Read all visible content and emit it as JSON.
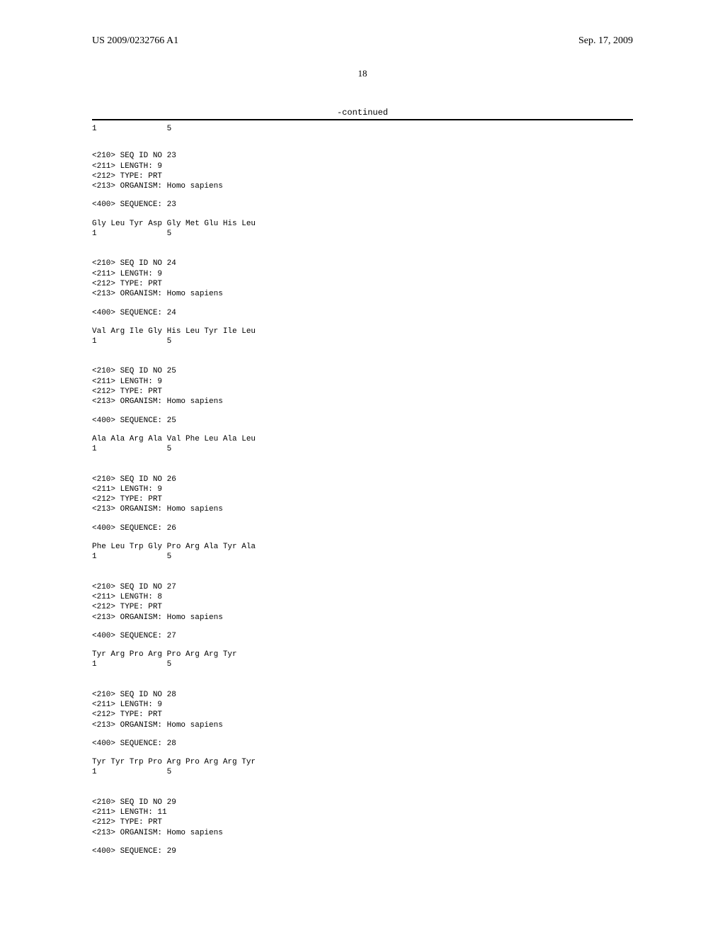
{
  "header": {
    "left": "US 2009/0232766 A1",
    "right": "Sep. 17, 2009"
  },
  "pageNumber": "18",
  "continued": "-continued",
  "sequences": [
    {
      "intro": "1               5",
      "header": [
        "<210> SEQ ID NO 23",
        "<211> LENGTH: 9",
        "<212> TYPE: PRT",
        "<213> ORGANISM: Homo sapiens"
      ],
      "seqLabel": "<400> SEQUENCE: 23",
      "seqLines": [
        "Gly Leu Tyr Asp Gly Met Glu His Leu",
        "1               5"
      ]
    },
    {
      "header": [
        "<210> SEQ ID NO 24",
        "<211> LENGTH: 9",
        "<212> TYPE: PRT",
        "<213> ORGANISM: Homo sapiens"
      ],
      "seqLabel": "<400> SEQUENCE: 24",
      "seqLines": [
        "Val Arg Ile Gly His Leu Tyr Ile Leu",
        "1               5"
      ]
    },
    {
      "header": [
        "<210> SEQ ID NO 25",
        "<211> LENGTH: 9",
        "<212> TYPE: PRT",
        "<213> ORGANISM: Homo sapiens"
      ],
      "seqLabel": "<400> SEQUENCE: 25",
      "seqLines": [
        "Ala Ala Arg Ala Val Phe Leu Ala Leu",
        "1               5"
      ]
    },
    {
      "header": [
        "<210> SEQ ID NO 26",
        "<211> LENGTH: 9",
        "<212> TYPE: PRT",
        "<213> ORGANISM: Homo sapiens"
      ],
      "seqLabel": "<400> SEQUENCE: 26",
      "seqLines": [
        "Phe Leu Trp Gly Pro Arg Ala Tyr Ala",
        "1               5"
      ]
    },
    {
      "header": [
        "<210> SEQ ID NO 27",
        "<211> LENGTH: 8",
        "<212> TYPE: PRT",
        "<213> ORGANISM: Homo sapiens"
      ],
      "seqLabel": "<400> SEQUENCE: 27",
      "seqLines": [
        "Tyr Arg Pro Arg Pro Arg Arg Tyr",
        "1               5"
      ]
    },
    {
      "header": [
        "<210> SEQ ID NO 28",
        "<211> LENGTH: 9",
        "<212> TYPE: PRT",
        "<213> ORGANISM: Homo sapiens"
      ],
      "seqLabel": "<400> SEQUENCE: 28",
      "seqLines": [
        "Tyr Tyr Trp Pro Arg Pro Arg Arg Tyr",
        "1               5"
      ]
    },
    {
      "header": [
        "<210> SEQ ID NO 29",
        "<211> LENGTH: 11",
        "<212> TYPE: PRT",
        "<213> ORGANISM: Homo sapiens"
      ],
      "seqLabel": "<400> SEQUENCE: 29",
      "seqLines": []
    }
  ]
}
